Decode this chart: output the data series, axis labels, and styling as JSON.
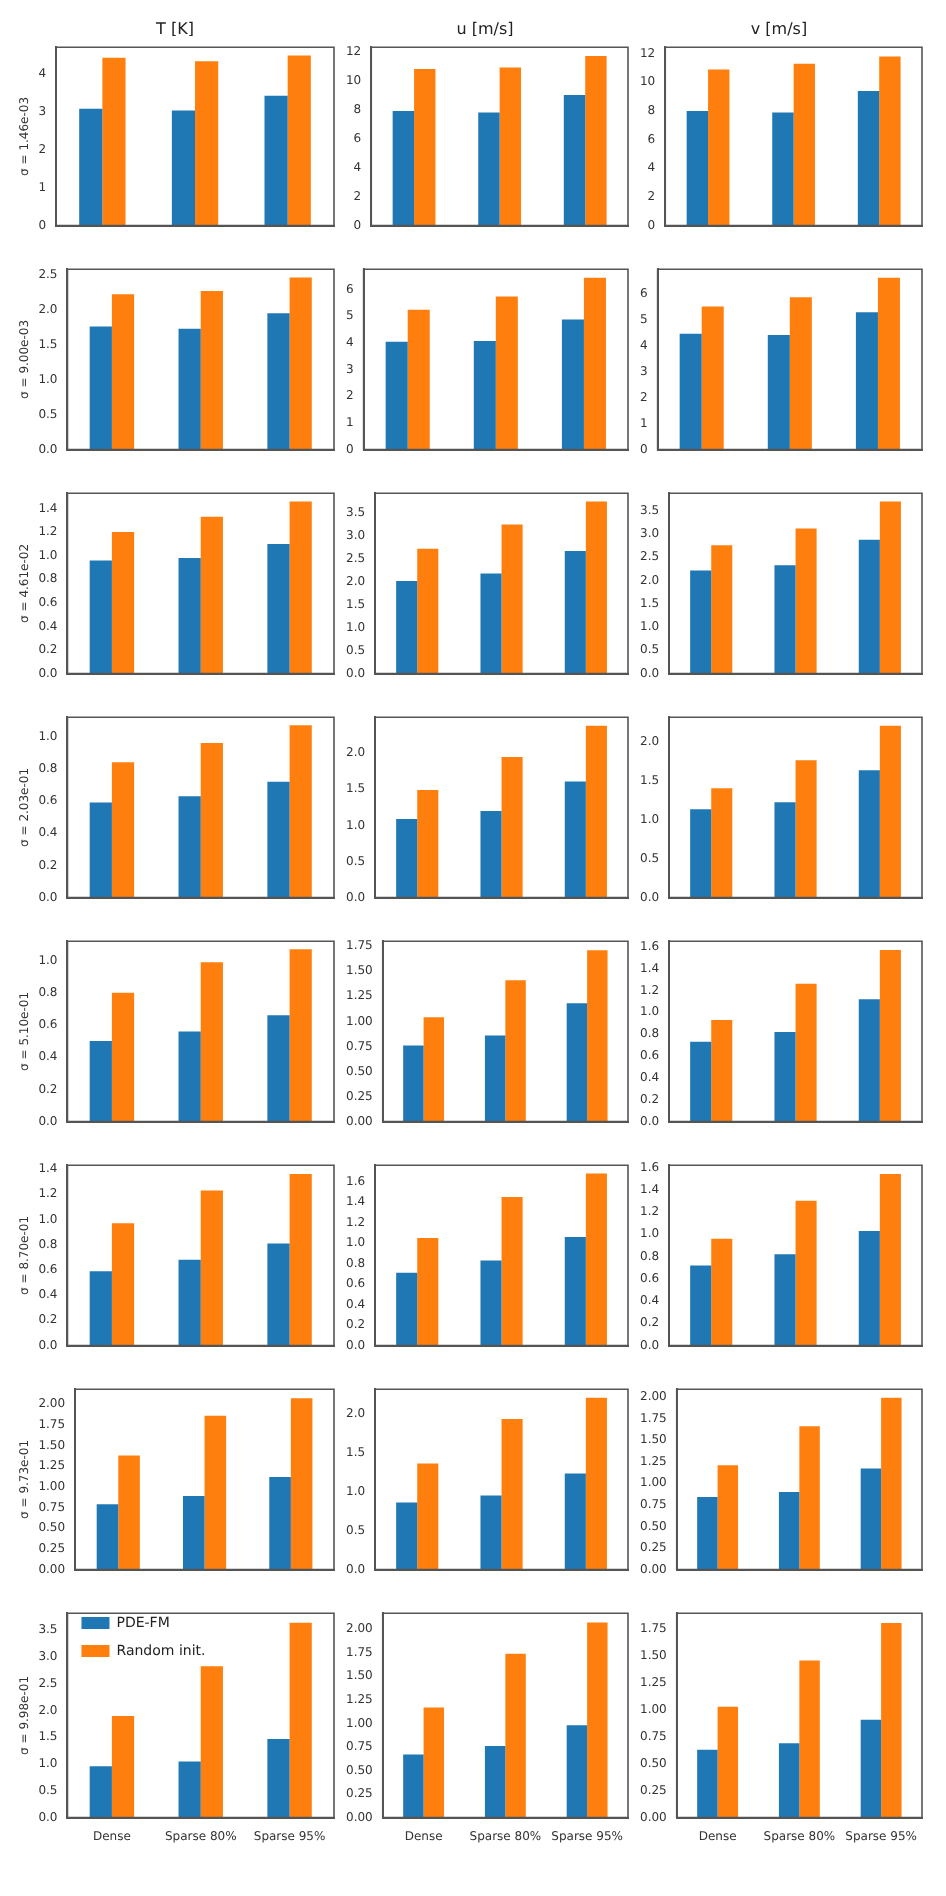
{
  "chart_data": [
    {
      "type": "bar",
      "title": "T [K]",
      "ylabel": "σ = 1.46e-03",
      "categories": [
        null,
        null,
        null
      ],
      "ylim": [
        0,
        4.7
      ],
      "yticks": [
        0,
        1,
        2,
        3,
        4
      ],
      "series": [
        {
          "color": "#1f77b4",
          "values": [
            3.08,
            3.03,
            3.42
          ]
        },
        {
          "color": "#ff7f0e",
          "values": [
            4.42,
            4.33,
            4.48
          ]
        }
      ]
    },
    {
      "type": "bar",
      "title": "u [m/s]",
      "categories": [
        null,
        null,
        null
      ],
      "ylim": [
        0,
        12.3
      ],
      "yticks": [
        0,
        2,
        4,
        6,
        8,
        10,
        12
      ],
      "series": [
        {
          "color": "#1f77b4",
          "values": [
            7.9,
            7.8,
            9.0
          ]
        },
        {
          "color": "#ff7f0e",
          "values": [
            10.8,
            10.9,
            11.7
          ]
        }
      ]
    },
    {
      "type": "bar",
      "title": "v [m/s]",
      "categories": [
        null,
        null,
        null
      ],
      "ylim": [
        0,
        12.45
      ],
      "yticks": [
        0,
        2,
        4,
        6,
        8,
        10,
        12
      ],
      "series": [
        {
          "color": "#1f77b4",
          "values": [
            8.0,
            7.9,
            9.4
          ]
        },
        {
          "color": "#ff7f0e",
          "values": [
            10.9,
            11.3,
            11.8
          ]
        }
      ]
    },
    {
      "type": "bar",
      "ylabel": "σ = 9.00e-03",
      "categories": [
        null,
        null,
        null
      ],
      "ylim": [
        0,
        2.58
      ],
      "yticks": [
        {
          "value": 0,
          "label": "0.0"
        },
        0.5,
        {
          "value": 1,
          "label": "1.0"
        },
        1.5,
        {
          "value": 2,
          "label": "2.0"
        },
        2.5
      ],
      "series": [
        {
          "color": "#1f77b4",
          "values": [
            1.76,
            1.73,
            1.95
          ]
        },
        {
          "color": "#ff7f0e",
          "values": [
            2.22,
            2.27,
            2.46
          ]
        }
      ]
    },
    {
      "type": "bar",
      "categories": [
        null,
        null,
        null
      ],
      "ylim": [
        0,
        6.77
      ],
      "yticks": [
        0,
        1,
        2,
        3,
        4,
        5,
        6
      ],
      "series": [
        {
          "color": "#1f77b4",
          "values": [
            4.05,
            4.08,
            4.88
          ]
        },
        {
          "color": "#ff7f0e",
          "values": [
            5.25,
            5.75,
            6.45
          ]
        }
      ]
    },
    {
      "type": "bar",
      "categories": [
        null,
        null,
        null
      ],
      "ylim": [
        0,
        6.93
      ],
      "yticks": [
        0,
        1,
        2,
        3,
        4,
        5,
        6
      ],
      "series": [
        {
          "color": "#1f77b4",
          "values": [
            4.45,
            4.4,
            5.28
          ]
        },
        {
          "color": "#ff7f0e",
          "values": [
            5.5,
            5.85,
            6.6
          ]
        }
      ]
    },
    {
      "type": "bar",
      "ylabel": "σ = 4.61e-02",
      "categories": [
        null,
        null,
        null
      ],
      "ylim": [
        0,
        1.53
      ],
      "yticks": [
        {
          "value": 0,
          "label": "0.0"
        },
        0.2,
        0.4,
        0.6,
        0.8,
        {
          "value": 1,
          "label": "1.0"
        },
        1.2,
        1.4
      ],
      "series": [
        {
          "color": "#1f77b4",
          "values": [
            0.96,
            0.98,
            1.1
          ]
        },
        {
          "color": "#ff7f0e",
          "values": [
            1.2,
            1.33,
            1.46
          ]
        }
      ]
    },
    {
      "type": "bar",
      "categories": [
        null,
        null,
        null
      ],
      "ylim": [
        0,
        3.93
      ],
      "yticks": [
        {
          "value": 0,
          "label": "0.0"
        },
        0.5,
        {
          "value": 1,
          "label": "1.0"
        },
        1.5,
        {
          "value": 2,
          "label": "2.0"
        },
        2.5,
        {
          "value": 3,
          "label": "3.0"
        },
        3.5
      ],
      "series": [
        {
          "color": "#1f77b4",
          "values": [
            2.02,
            2.18,
            2.67
          ]
        },
        {
          "color": "#ff7f0e",
          "values": [
            2.72,
            3.25,
            3.75
          ]
        }
      ]
    },
    {
      "type": "bar",
      "categories": [
        null,
        null,
        null
      ],
      "ylim": [
        0,
        3.88
      ],
      "yticks": [
        {
          "value": 0,
          "label": "0.0"
        },
        0.5,
        {
          "value": 1,
          "label": "1.0"
        },
        1.5,
        {
          "value": 2,
          "label": "2.0"
        },
        2.5,
        {
          "value": 3,
          "label": "3.0"
        },
        3.5
      ],
      "series": [
        {
          "color": "#1f77b4",
          "values": [
            2.22,
            2.33,
            2.88
          ]
        },
        {
          "color": "#ff7f0e",
          "values": [
            2.76,
            3.12,
            3.7
          ]
        }
      ]
    },
    {
      "type": "bar",
      "ylabel": "σ = 2.03e-01",
      "categories": [
        null,
        null,
        null
      ],
      "ylim": [
        0,
        1.12
      ],
      "yticks": [
        {
          "value": 0,
          "label": "0.0"
        },
        0.2,
        0.4,
        0.6,
        0.8,
        {
          "value": 1,
          "label": "1.0"
        }
      ],
      "series": [
        {
          "color": "#1f77b4",
          "values": [
            0.59,
            0.63,
            0.72
          ]
        },
        {
          "color": "#ff7f0e",
          "values": [
            0.84,
            0.96,
            1.07
          ]
        }
      ]
    },
    {
      "type": "bar",
      "categories": [
        null,
        null,
        null
      ],
      "ylim": [
        0,
        2.5
      ],
      "yticks": [
        {
          "value": 0,
          "label": "0.0"
        },
        0.5,
        {
          "value": 1,
          "label": "1.0"
        },
        1.5,
        {
          "value": 2,
          "label": "2.0"
        }
      ],
      "series": [
        {
          "color": "#1f77b4",
          "values": [
            1.09,
            1.2,
            1.61
          ]
        },
        {
          "color": "#ff7f0e",
          "values": [
            1.49,
            1.95,
            2.38
          ]
        }
      ]
    },
    {
      "type": "bar",
      "categories": [
        null,
        null,
        null
      ],
      "ylim": [
        0,
        2.31
      ],
      "yticks": [
        {
          "value": 0,
          "label": "0.0"
        },
        0.5,
        {
          "value": 1,
          "label": "1.0"
        },
        1.5,
        {
          "value": 2,
          "label": "2.0"
        }
      ],
      "series": [
        {
          "color": "#1f77b4",
          "values": [
            1.13,
            1.22,
            1.63
          ]
        },
        {
          "color": "#ff7f0e",
          "values": [
            1.4,
            1.76,
            2.2
          ]
        }
      ]
    },
    {
      "type": "bar",
      "ylabel": "σ = 5.10e-01",
      "categories": [
        null,
        null,
        null
      ],
      "ylim": [
        0,
        1.12
      ],
      "yticks": [
        {
          "value": 0,
          "label": "0.0"
        },
        0.2,
        0.4,
        0.6,
        0.8,
        {
          "value": 1,
          "label": "1.0"
        }
      ],
      "series": [
        {
          "color": "#1f77b4",
          "values": [
            0.5,
            0.56,
            0.66
          ]
        },
        {
          "color": "#ff7f0e",
          "values": [
            0.8,
            0.99,
            1.07
          ]
        }
      ]
    },
    {
      "type": "bar",
      "categories": [
        null,
        null,
        null
      ],
      "ylim": [
        0,
        1.8
      ],
      "yticks": [
        {
          "value": 0,
          "label": "0.00"
        },
        0.25,
        {
          "value": 0.5,
          "label": "0.50"
        },
        0.75,
        {
          "value": 1,
          "label": "1.00"
        },
        1.25,
        {
          "value": 1.5,
          "label": "1.50"
        },
        1.75
      ],
      "series": [
        {
          "color": "#1f77b4",
          "values": [
            0.76,
            0.86,
            1.18
          ]
        },
        {
          "color": "#ff7f0e",
          "values": [
            1.04,
            1.41,
            1.71
          ]
        }
      ]
    },
    {
      "type": "bar",
      "categories": [
        null,
        null,
        null
      ],
      "ylim": [
        0,
        1.65
      ],
      "yticks": [
        {
          "value": 0,
          "label": "0.0"
        },
        0.2,
        0.4,
        0.6,
        0.8,
        {
          "value": 1,
          "label": "1.0"
        },
        1.2,
        1.4,
        1.6
      ],
      "series": [
        {
          "color": "#1f77b4",
          "values": [
            0.73,
            0.82,
            1.12
          ]
        },
        {
          "color": "#ff7f0e",
          "values": [
            0.93,
            1.26,
            1.57
          ]
        }
      ]
    },
    {
      "type": "bar",
      "ylabel": "σ = 8.70e-01",
      "categories": [
        null,
        null,
        null
      ],
      "ylim": [
        0,
        1.43
      ],
      "yticks": [
        {
          "value": 0,
          "label": "0.0"
        },
        0.2,
        0.4,
        0.6,
        0.8,
        {
          "value": 1,
          "label": "1.0"
        },
        1.2,
        1.4
      ],
      "series": [
        {
          "color": "#1f77b4",
          "values": [
            0.59,
            0.68,
            0.81
          ]
        },
        {
          "color": "#ff7f0e",
          "values": [
            0.97,
            1.23,
            1.36
          ]
        }
      ]
    },
    {
      "type": "bar",
      "categories": [
        null,
        null,
        null
      ],
      "ylim": [
        0,
        1.76
      ],
      "yticks": [
        {
          "value": 0,
          "label": "0.0"
        },
        0.2,
        0.4,
        0.6,
        0.8,
        {
          "value": 1,
          "label": "1.0"
        },
        1.2,
        1.4,
        1.6
      ],
      "series": [
        {
          "color": "#1f77b4",
          "values": [
            0.71,
            0.83,
            1.06
          ]
        },
        {
          "color": "#ff7f0e",
          "values": [
            1.05,
            1.45,
            1.68
          ]
        }
      ]
    },
    {
      "type": "bar",
      "categories": [
        null,
        null,
        null
      ],
      "ylim": [
        0,
        1.62
      ],
      "yticks": [
        {
          "value": 0,
          "label": "0.0"
        },
        0.2,
        0.4,
        0.6,
        0.8,
        {
          "value": 1,
          "label": "1.0"
        },
        1.2,
        1.4,
        1.6
      ],
      "series": [
        {
          "color": "#1f77b4",
          "values": [
            0.72,
            0.82,
            1.03
          ]
        },
        {
          "color": "#ff7f0e",
          "values": [
            0.96,
            1.3,
            1.54
          ]
        }
      ]
    },
    {
      "type": "bar",
      "ylabel": "σ = 9.73e-01",
      "categories": [
        null,
        null,
        null
      ],
      "ylim": [
        0,
        2.18
      ],
      "yticks": [
        {
          "value": 0,
          "label": "0.00"
        },
        0.25,
        {
          "value": 0.5,
          "label": "0.50"
        },
        0.75,
        {
          "value": 1,
          "label": "1.00"
        },
        1.25,
        {
          "value": 1.5,
          "label": "1.50"
        },
        1.75,
        {
          "value": 2,
          "label": "2.00"
        }
      ],
      "series": [
        {
          "color": "#1f77b4",
          "values": [
            0.79,
            0.89,
            1.12
          ]
        },
        {
          "color": "#ff7f0e",
          "values": [
            1.38,
            1.86,
            2.07
          ]
        }
      ]
    },
    {
      "type": "bar",
      "categories": [
        null,
        null,
        null
      ],
      "ylim": [
        0,
        2.31
      ],
      "yticks": [
        {
          "value": 0,
          "label": "0.0"
        },
        0.5,
        {
          "value": 1,
          "label": "1.0"
        },
        1.5,
        {
          "value": 2,
          "label": "2.0"
        }
      ],
      "series": [
        {
          "color": "#1f77b4",
          "values": [
            0.86,
            0.95,
            1.23
          ]
        },
        {
          "color": "#ff7f0e",
          "values": [
            1.36,
            1.93,
            2.2
          ]
        }
      ]
    },
    {
      "type": "bar",
      "categories": [
        null,
        null,
        null
      ],
      "ylim": [
        0,
        2.09
      ],
      "yticks": [
        {
          "value": 0,
          "label": "0.00"
        },
        0.25,
        {
          "value": 0.5,
          "label": "0.50"
        },
        0.75,
        {
          "value": 1,
          "label": "1.00"
        },
        1.25,
        {
          "value": 1.5,
          "label": "1.50"
        },
        1.75,
        {
          "value": 2,
          "label": "2.00"
        }
      ],
      "series": [
        {
          "color": "#1f77b4",
          "values": [
            0.84,
            0.9,
            1.17
          ]
        },
        {
          "color": "#ff7f0e",
          "values": [
            1.21,
            1.66,
            1.99
          ]
        }
      ]
    },
    {
      "type": "bar",
      "ylabel": "σ = 9.98e-01",
      "categories": [
        "Dense",
        "Sparse 80%",
        "Sparse 95%"
      ],
      "legend": "top left",
      "ylim": [
        0,
        3.82
      ],
      "yticks": [
        {
          "value": 0,
          "label": "0.0"
        },
        0.5,
        {
          "value": 1,
          "label": "1.0"
        },
        1.5,
        {
          "value": 2,
          "label": "2.0"
        },
        2.5,
        {
          "value": 3,
          "label": "3.0"
        },
        3.5
      ],
      "series": [
        {
          "name": "PDE-FM",
          "color": "#1f77b4",
          "values": [
            0.96,
            1.05,
            1.47
          ]
        },
        {
          "name": "Random init.",
          "color": "#ff7f0e",
          "values": [
            1.9,
            2.83,
            3.64
          ]
        }
      ]
    },
    {
      "type": "bar",
      "categories": [
        "Dense",
        "Sparse 80%",
        "Sparse 95%"
      ],
      "ylim": [
        0,
        2.17
      ],
      "yticks": [
        {
          "value": 0,
          "label": "0.00"
        },
        0.25,
        {
          "value": 0.5,
          "label": "0.50"
        },
        0.75,
        {
          "value": 1,
          "label": "1.00"
        },
        1.25,
        {
          "value": 1.5,
          "label": "1.50"
        },
        1.75,
        {
          "value": 2,
          "label": "2.00"
        }
      ],
      "series": [
        {
          "color": "#1f77b4",
          "values": [
            0.67,
            0.76,
            0.98
          ]
        },
        {
          "color": "#ff7f0e",
          "values": [
            1.17,
            1.74,
            2.07
          ]
        }
      ]
    },
    {
      "type": "bar",
      "categories": [
        "Dense",
        "Sparse 80%",
        "Sparse 95%"
      ],
      "ylim": [
        0,
        1.9
      ],
      "yticks": [
        {
          "value": 0,
          "label": "0.00"
        },
        0.25,
        {
          "value": 0.5,
          "label": "0.50"
        },
        0.75,
        {
          "value": 1,
          "label": "1.00"
        },
        1.25,
        {
          "value": 1.5,
          "label": "1.50"
        },
        1.75
      ],
      "series": [
        {
          "color": "#1f77b4",
          "values": [
            0.63,
            0.69,
            0.91
          ]
        },
        {
          "color": "#ff7f0e",
          "values": [
            1.03,
            1.46,
            1.81
          ]
        }
      ]
    }
  ]
}
